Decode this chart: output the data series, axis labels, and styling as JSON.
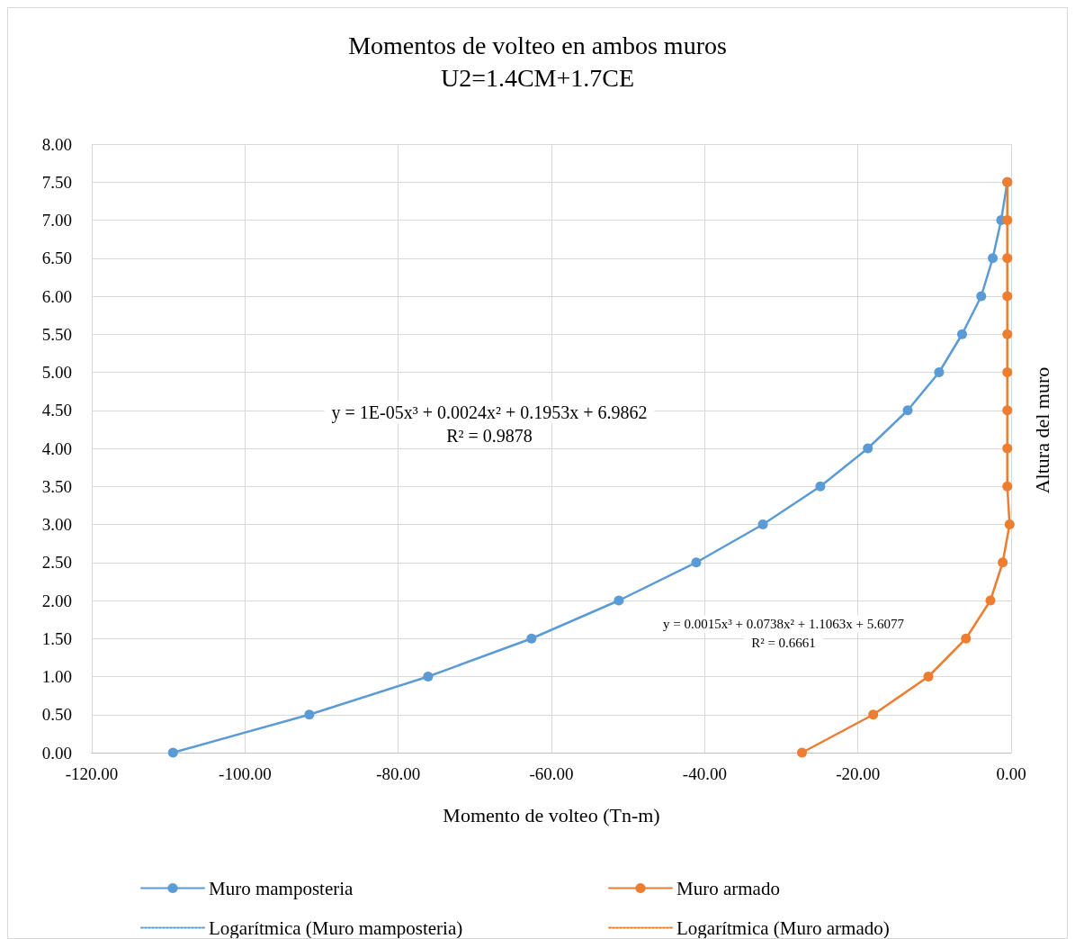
{
  "chart_data": {
    "type": "line",
    "title": "Momentos de volteo en ambos muros",
    "subtitle": "U2=1.4CM+1.7CE",
    "xlabel": "Momento de volteo (Tn-m)",
    "ylabel": "Altura del muro",
    "series": [
      {
        "name": "Muro mamposteria",
        "color": "#5b9bd5",
        "marker": "circle",
        "x": [
          -109.4,
          -91.6,
          -76.1,
          -62.6,
          -51.2,
          -41.1,
          -32.4,
          -24.9,
          -18.7,
          -13.5,
          -9.4,
          -6.4,
          -3.9,
          -2.4,
          -1.3,
          -0.5
        ],
        "values": [
          0,
          0.5,
          1,
          1.5,
          2,
          2.5,
          3,
          3.5,
          4,
          4.5,
          5,
          5.5,
          6,
          6.5,
          7,
          7.5
        ]
      },
      {
        "name": "Muro armado",
        "color": "#ed7d31",
        "marker": "circle",
        "x": [
          -27.3,
          -18.0,
          -10.8,
          -5.9,
          -2.7,
          -1.1,
          -0.2,
          -0.5,
          -0.5,
          -0.5,
          -0.5,
          -0.5,
          -0.5,
          -0.5,
          -0.5,
          -0.5
        ],
        "values": [
          0,
          0.5,
          1,
          1.5,
          2,
          2.5,
          3,
          3.5,
          4,
          4.5,
          5,
          5.5,
          6,
          6.5,
          7,
          7.5
        ]
      },
      {
        "name": "Logarítmica (Muro mamposteria)",
        "color": "#5b9bd5",
        "marker": "none",
        "line_style": "dotted"
      },
      {
        "name": "Logarítmica (Muro armado)",
        "color": "#ed7d31",
        "marker": "none",
        "line_style": "dotted"
      }
    ],
    "annotations": [
      "y = 1E-05x³ + 0.0024x² + 0.1953x + 6.9862",
      "R² = 0.9878",
      "y = 0.0015x³ + 0.0738x² + 1.1063x + 5.6077",
      "R² = 0.6661"
    ],
    "xlim": [
      -120,
      0
    ],
    "xticks": [
      {
        "value": -120,
        "label": "-120.00"
      },
      {
        "value": -100,
        "label": "-100.00"
      },
      {
        "value": -80,
        "label": "-80.00"
      },
      {
        "value": -60,
        "label": "-60.00"
      },
      {
        "value": -40,
        "label": "-40.00"
      },
      {
        "value": -20,
        "label": "-20.00"
      },
      {
        "value": 0,
        "label": "0.00"
      }
    ],
    "ylim": [
      0,
      8
    ],
    "yticks": [
      {
        "value": 0,
        "label": "0.00"
      },
      {
        "value": 0.5,
        "label": "0.50"
      },
      {
        "value": 1,
        "label": "1.00"
      },
      {
        "value": 1.5,
        "label": "1.50"
      },
      {
        "value": 2,
        "label": "2.00"
      },
      {
        "value": 2.5,
        "label": "2.50"
      },
      {
        "value": 3,
        "label": "3.00"
      },
      {
        "value": 3.5,
        "label": "3.50"
      },
      {
        "value": 4,
        "label": "4.00"
      },
      {
        "value": 4.5,
        "label": "4.50"
      },
      {
        "value": 5,
        "label": "5.00"
      },
      {
        "value": 5.5,
        "label": "5.50"
      },
      {
        "value": 6,
        "label": "6.00"
      },
      {
        "value": 6.5,
        "label": "6.50"
      },
      {
        "value": 7,
        "label": "7.00"
      },
      {
        "value": 7.5,
        "label": "7.50"
      },
      {
        "value": 8,
        "label": "8.00"
      }
    ],
    "grid": true,
    "legend": "bottom"
  }
}
